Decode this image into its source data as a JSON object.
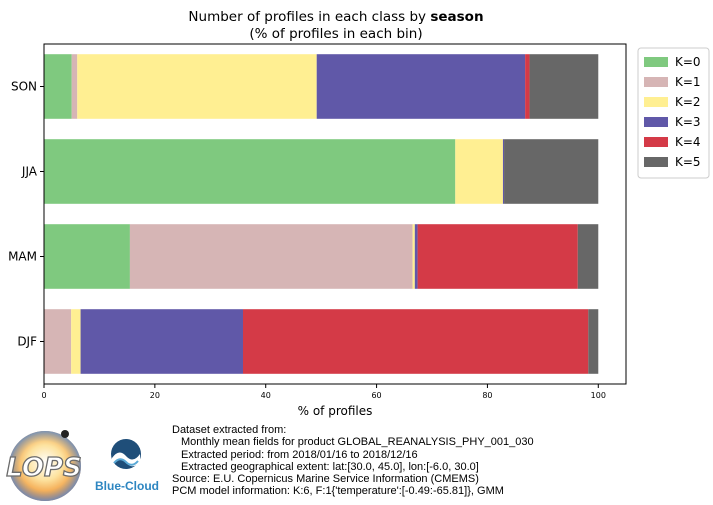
{
  "chart_data": {
    "type": "bar",
    "orientation": "horizontal",
    "stacked": true,
    "title": "Number of profiles in each class by",
    "title_bold": "season",
    "subtitle": "(% of profiles in each bin)",
    "xlabel": "% of profiles",
    "ylabel": "",
    "xlim": [
      0,
      105
    ],
    "xticks": [
      "0",
      "20",
      "40",
      "60",
      "80",
      "100"
    ],
    "categories": [
      "SON",
      "JJA",
      "MAM",
      "DJF"
    ],
    "legend_position": "outside-top-right",
    "grid": false,
    "series": [
      {
        "name": "K=0",
        "color": "#7fc97f",
        "values": [
          5.0,
          74.2,
          15.5,
          0.0
        ]
      },
      {
        "name": "K=1",
        "color": "#d6b5b5",
        "values": [
          1.0,
          0.0,
          51.0,
          4.9
        ]
      },
      {
        "name": "K=2",
        "color": "#ffef92",
        "values": [
          43.2,
          8.6,
          0.4,
          1.7
        ]
      },
      {
        "name": "K=3",
        "color": "#6058a8",
        "values": [
          37.6,
          0.2,
          0.5,
          29.3
        ]
      },
      {
        "name": "K=4",
        "color": "#d43a47",
        "values": [
          0.8,
          0.0,
          28.9,
          62.3
        ]
      },
      {
        "name": "K=5",
        "color": "#676767",
        "values": [
          12.4,
          17.0,
          3.7,
          1.8
        ]
      }
    ]
  },
  "footer": {
    "line1": "Dataset extracted from:",
    "line2": "Monthly mean fields for product GLOBAL_REANALYSIS_PHY_001_030",
    "line3": "Extracted period: from 2018/01/16 to 2018/12/16",
    "line4": "Extracted geographical extent: lat:[30.0, 45.0], lon:[-6.0, 30.0]",
    "line5": "Source: E.U. Copernicus Marine Service Information (CMEMS)",
    "line6": "PCM model information: K:6, F:1{'temperature':[-0.49:-65.81]}, GMM"
  },
  "logos": {
    "lops_text": "LOPS",
    "bluecloud_text": "Blue-Cloud"
  }
}
